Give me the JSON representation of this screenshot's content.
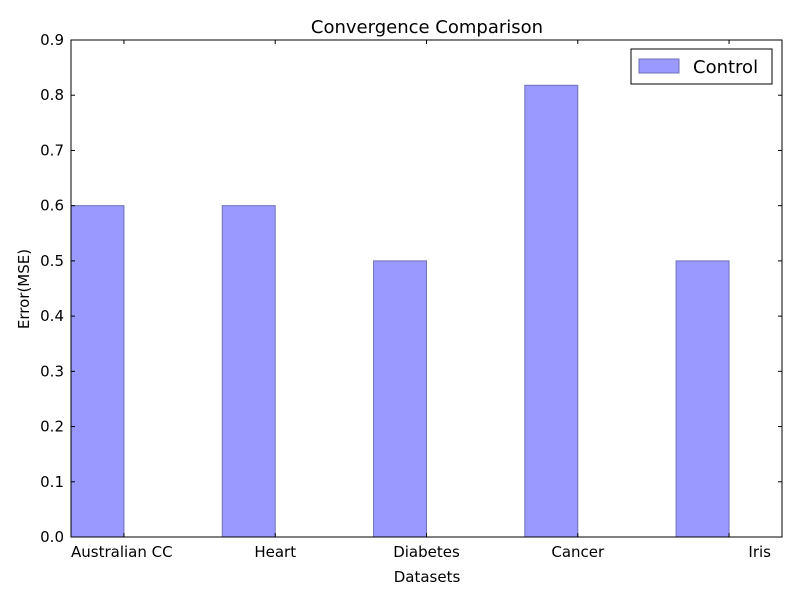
{
  "chart_data": {
    "type": "bar",
    "title": "Convergence Comparison",
    "xlabel": "Datasets",
    "ylabel": "Error(MSE)",
    "categories": [
      "Australian CC",
      "Heart",
      "Diabetes",
      "Cancer",
      "Iris"
    ],
    "series": [
      {
        "name": "Control",
        "values": [
          0.6,
          0.6,
          0.5,
          0.818,
          0.5
        ],
        "color": "#9999ff"
      }
    ],
    "ylim": [
      0,
      0.9
    ],
    "yticks": [
      "0.0",
      "0.1",
      "0.2",
      "0.3",
      "0.4",
      "0.5",
      "0.6",
      "0.7",
      "0.8",
      "0.9"
    ],
    "grid": false,
    "legend": "top-right",
    "colors": {
      "bar_fill": "#9999ff",
      "bar_edge": "#7070b8",
      "axis": "#000000"
    }
  }
}
